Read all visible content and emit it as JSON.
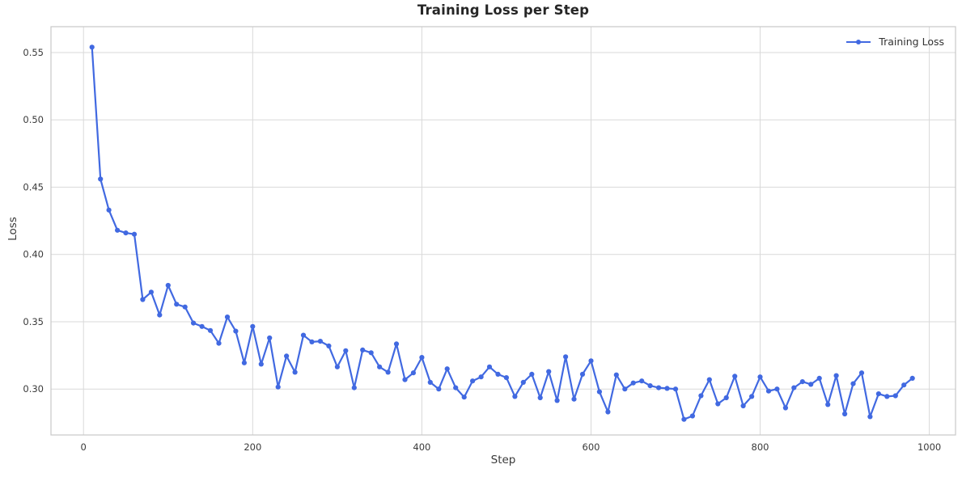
{
  "style": {
    "background": "#ffffff",
    "line_color": "#4169e1",
    "grid_color": "#d9d9d9",
    "spine_color": "#c8c8c8",
    "title_color": "#262626",
    "label_color": "#3a3a3a",
    "tick_color": "#3a3a3a",
    "legend_text_color": "#333333"
  },
  "chart_data": {
    "type": "line",
    "title": "Training Loss per Step",
    "xlabel": "Step",
    "ylabel": "Loss",
    "grid": true,
    "legend": {
      "label": "Training Loss",
      "position": "upper right",
      "frame": false
    },
    "xlim": [
      -38.5,
      1031
    ],
    "ylim": [
      0.2659,
      0.5692
    ],
    "x_ticks": [
      0,
      200,
      400,
      600,
      800,
      1000
    ],
    "y_ticks": [
      0.3,
      0.35,
      0.4,
      0.45,
      0.5,
      0.55
    ],
    "series": [
      {
        "name": "Training Loss",
        "color": "#4169e1",
        "marker": "circle",
        "x": [
          10,
          20,
          30,
          40,
          50,
          60,
          70,
          80,
          90,
          100,
          110,
          120,
          130,
          140,
          150,
          160,
          170,
          180,
          190,
          200,
          210,
          220,
          230,
          240,
          250,
          260,
          270,
          280,
          290,
          300,
          310,
          320,
          330,
          340,
          350,
          360,
          370,
          380,
          390,
          400,
          410,
          420,
          430,
          440,
          450,
          460,
          470,
          480,
          490,
          500,
          510,
          520,
          530,
          540,
          550,
          560,
          570,
          580,
          590,
          600,
          610,
          620,
          630,
          640,
          650,
          660,
          670,
          680,
          690,
          700,
          710,
          720,
          730,
          740,
          750,
          760,
          770,
          780,
          790,
          800,
          810,
          820,
          830,
          840,
          850,
          860,
          870,
          880,
          890,
          900,
          910,
          920,
          930,
          940,
          950,
          960,
          970,
          980
        ],
        "y": [
          0.554,
          0.456,
          0.433,
          0.418,
          0.416,
          0.415,
          0.3665,
          0.372,
          0.355,
          0.377,
          0.363,
          0.361,
          0.349,
          0.3465,
          0.3435,
          0.334,
          0.3535,
          0.343,
          0.3195,
          0.3465,
          0.3185,
          0.338,
          0.3015,
          0.3245,
          0.3125,
          0.34,
          0.335,
          0.3355,
          0.332,
          0.3165,
          0.3285,
          0.301,
          0.329,
          0.327,
          0.3165,
          0.3125,
          0.3335,
          0.307,
          0.312,
          0.3235,
          0.305,
          0.3,
          0.315,
          0.301,
          0.294,
          0.306,
          0.309,
          0.3165,
          0.311,
          0.3085,
          0.2945,
          0.305,
          0.311,
          0.2935,
          0.313,
          0.2915,
          0.324,
          0.2925,
          0.311,
          0.321,
          0.298,
          0.283,
          0.3105,
          0.3,
          0.3045,
          0.306,
          0.3025,
          0.301,
          0.3005,
          0.3,
          0.2775,
          0.28,
          0.295,
          0.307,
          0.289,
          0.2935,
          0.3095,
          0.2875,
          0.2945,
          0.309,
          0.2985,
          0.3,
          0.286,
          0.301,
          0.3055,
          0.3035,
          0.308,
          0.2885,
          0.31,
          0.2815,
          0.304,
          0.312,
          0.2795,
          0.2965,
          0.2945,
          0.295,
          0.303,
          0.308
        ]
      }
    ]
  }
}
